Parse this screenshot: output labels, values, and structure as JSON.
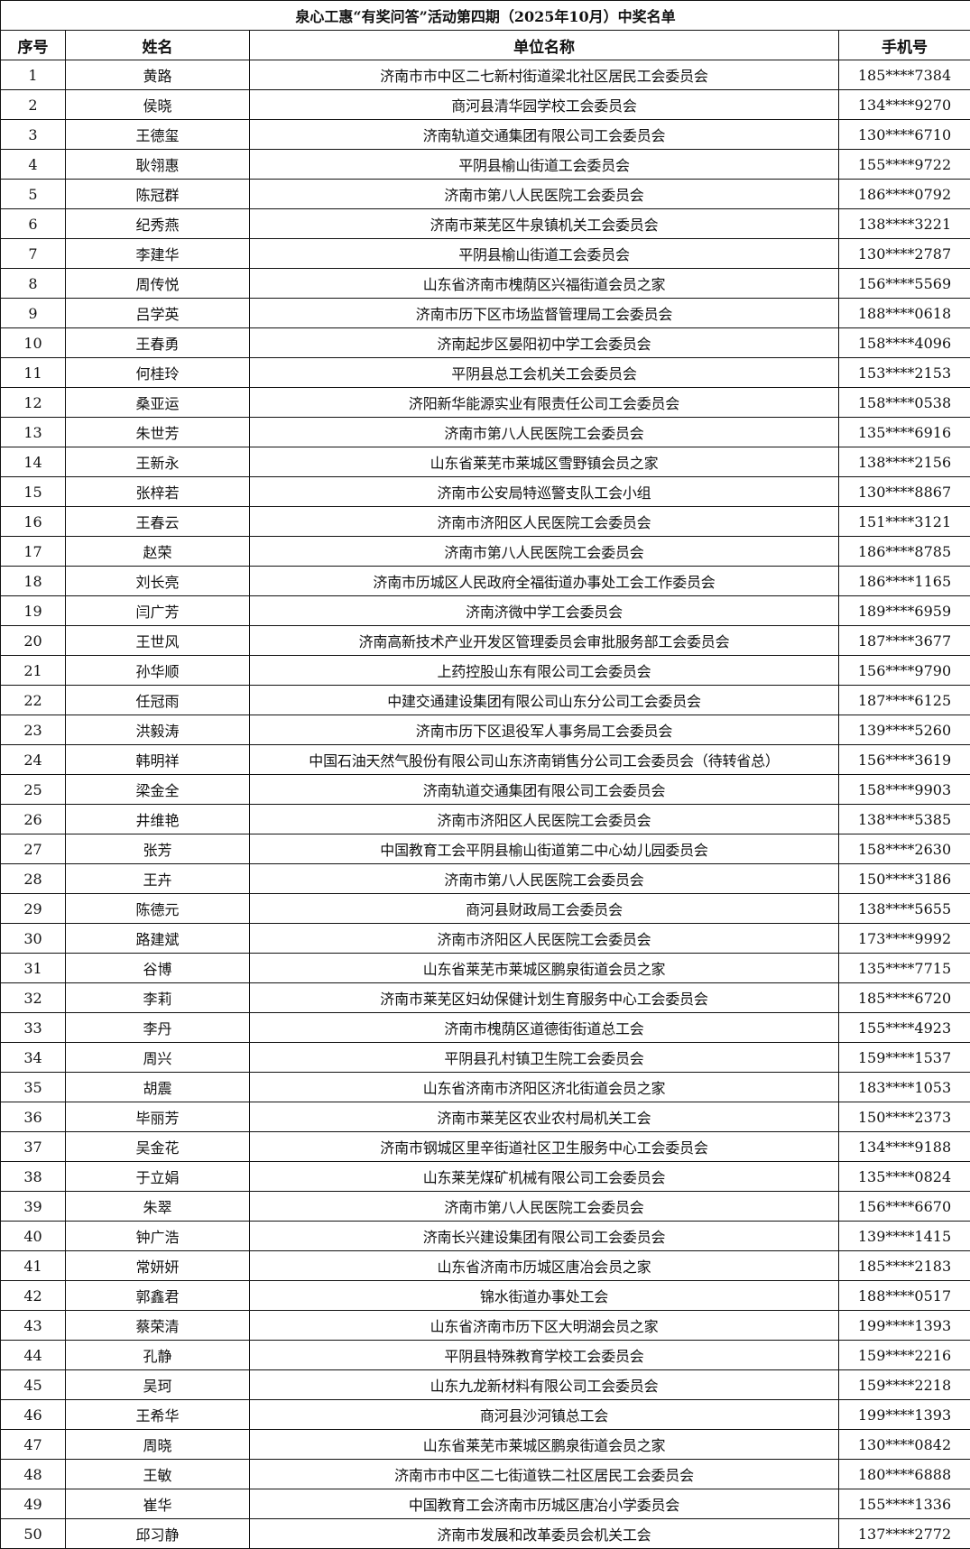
{
  "title": "泉心工惠“有奖问答”活动第四期（2025年10月）中奖名单",
  "columns": [
    "序号",
    "姓名",
    "单位名称",
    "手机号"
  ],
  "rows": [
    {
      "no": "1",
      "name": "黄路",
      "org": "济南市市中区二七新村街道梁北社区居民工会委员会",
      "phone": "185****7384"
    },
    {
      "no": "2",
      "name": "侯晓",
      "org": "商河县清华园学校工会委员会",
      "phone": "134****9270"
    },
    {
      "no": "3",
      "name": "王德玺",
      "org": "济南轨道交通集团有限公司工会委员会",
      "phone": "130****6710"
    },
    {
      "no": "4",
      "name": "耿翎惠",
      "org": "平阴县榆山街道工会委员会",
      "phone": "155****9722"
    },
    {
      "no": "5",
      "name": "陈冠群",
      "org": "济南市第八人民医院工会委员会",
      "phone": "186****0792"
    },
    {
      "no": "6",
      "name": "纪秀燕",
      "org": "济南市莱芜区牛泉镇机关工会委员会",
      "phone": "138****3221"
    },
    {
      "no": "7",
      "name": "李建华",
      "org": "平阴县榆山街道工会委员会",
      "phone": "130****2787"
    },
    {
      "no": "8",
      "name": "周传悦",
      "org": "山东省济南市槐荫区兴福街道会员之家",
      "phone": "156****5569"
    },
    {
      "no": "9",
      "name": "吕学英",
      "org": "济南市历下区市场监督管理局工会委员会",
      "phone": "188****0618"
    },
    {
      "no": "10",
      "name": "王春勇",
      "org": "济南起步区晏阳初中学工会委员会",
      "phone": "158****4096"
    },
    {
      "no": "11",
      "name": "何桂玲",
      "org": "平阴县总工会机关工会委员会",
      "phone": "153****2153"
    },
    {
      "no": "12",
      "name": "桑亚运",
      "org": "济阳新华能源实业有限责任公司工会委员会",
      "phone": "158****0538"
    },
    {
      "no": "13",
      "name": "朱世芳",
      "org": "济南市第八人民医院工会委员会",
      "phone": "135****6916"
    },
    {
      "no": "14",
      "name": "王新永",
      "org": "山东省莱芜市莱城区雪野镇会员之家",
      "phone": "138****2156"
    },
    {
      "no": "15",
      "name": "张梓若",
      "org": "济南市公安局特巡警支队工会小组",
      "phone": "130****8867"
    },
    {
      "no": "16",
      "name": "王春云",
      "org": "济南市济阳区人民医院工会委员会",
      "phone": "151****3121"
    },
    {
      "no": "17",
      "name": "赵荣",
      "org": "济南市第八人民医院工会委员会",
      "phone": "186****8785"
    },
    {
      "no": "18",
      "name": "刘长亮",
      "org": "济南市历城区人民政府全福街道办事处工会工作委员会",
      "phone": "186****1165"
    },
    {
      "no": "19",
      "name": "闫广芳",
      "org": "济南济微中学工会委员会",
      "phone": "189****6959"
    },
    {
      "no": "20",
      "name": "王世风",
      "org": "济南高新技术产业开发区管理委员会审批服务部工会委员会",
      "phone": "187****3677"
    },
    {
      "no": "21",
      "name": "孙华顺",
      "org": "上药控股山东有限公司工会委员会",
      "phone": "156****9790"
    },
    {
      "no": "22",
      "name": "任冠雨",
      "org": "中建交通建设集团有限公司山东分公司工会委员会",
      "phone": "187****6125"
    },
    {
      "no": "23",
      "name": "洪毅涛",
      "org": "济南市历下区退役军人事务局工会委员会",
      "phone": "139****5260"
    },
    {
      "no": "24",
      "name": "韩明祥",
      "org": "中国石油天然气股份有限公司山东济南销售分公司工会委员会（待转省总）",
      "phone": "156****3619"
    },
    {
      "no": "25",
      "name": "梁金全",
      "org": "济南轨道交通集团有限公司工会委员会",
      "phone": "158****9903"
    },
    {
      "no": "26",
      "name": "井维艳",
      "org": "济南市济阳区人民医院工会委员会",
      "phone": "138****5385"
    },
    {
      "no": "27",
      "name": "张芳",
      "org": "中国教育工会平阴县榆山街道第二中心幼儿园委员会",
      "phone": "158****2630"
    },
    {
      "no": "28",
      "name": "王卉",
      "org": "济南市第八人民医院工会委员会",
      "phone": "150****3186"
    },
    {
      "no": "29",
      "name": "陈德元",
      "org": "商河县财政局工会委员会",
      "phone": "138****5655"
    },
    {
      "no": "30",
      "name": "路建斌",
      "org": "济南市济阳区人民医院工会委员会",
      "phone": "173****9992"
    },
    {
      "no": "31",
      "name": "谷博",
      "org": "山东省莱芜市莱城区鹏泉街道会员之家",
      "phone": "135****7715"
    },
    {
      "no": "32",
      "name": "李莉",
      "org": "济南市莱芜区妇幼保健计划生育服务中心工会委员会",
      "phone": "185****6720"
    },
    {
      "no": "33",
      "name": "李丹",
      "org": "济南市槐荫区道德街街道总工会",
      "phone": "155****4923"
    },
    {
      "no": "34",
      "name": "周兴",
      "org": "平阴县孔村镇卫生院工会委员会",
      "phone": "159****1537"
    },
    {
      "no": "35",
      "name": "胡震",
      "org": "山东省济南市济阳区济北街道会员之家",
      "phone": "183****1053"
    },
    {
      "no": "36",
      "name": "毕丽芳",
      "org": "济南市莱芜区农业农村局机关工会",
      "phone": "150****2373"
    },
    {
      "no": "37",
      "name": "吴金花",
      "org": "济南市钢城区里辛街道社区卫生服务中心工会委员会",
      "phone": "134****9188"
    },
    {
      "no": "38",
      "name": "于立娟",
      "org": "山东莱芜煤矿机械有限公司工会委员会",
      "phone": "135****0824"
    },
    {
      "no": "39",
      "name": "朱翠",
      "org": "济南市第八人民医院工会委员会",
      "phone": "156****6670"
    },
    {
      "no": "40",
      "name": "钟广浩",
      "org": "济南长兴建设集团有限公司工会委员会",
      "phone": "139****1415"
    },
    {
      "no": "41",
      "name": "常妍妍",
      "org": "山东省济南市历城区唐冶会员之家",
      "phone": "185****2183"
    },
    {
      "no": "42",
      "name": "郭鑫君",
      "org": "锦水街道办事处工会",
      "phone": "188****0517"
    },
    {
      "no": "43",
      "name": "蔡荣清",
      "org": "山东省济南市历下区大明湖会员之家",
      "phone": "199****1393"
    },
    {
      "no": "44",
      "name": "孔静",
      "org": "平阴县特殊教育学校工会委员会",
      "phone": "159****2216"
    },
    {
      "no": "45",
      "name": "吴珂",
      "org": "山东九龙新材料有限公司工会委员会",
      "phone": "159****2218"
    },
    {
      "no": "46",
      "name": "王希华",
      "org": "商河县沙河镇总工会",
      "phone": "199****1393"
    },
    {
      "no": "47",
      "name": "周晓",
      "org": "山东省莱芜市莱城区鹏泉街道会员之家",
      "phone": "130****0842"
    },
    {
      "no": "48",
      "name": "王敏",
      "org": "济南市市中区二七街道铁二社区居民工会委员会",
      "phone": "180****6888"
    },
    {
      "no": "49",
      "name": "崔华",
      "org": "中国教育工会济南市历城区唐冶小学委员会",
      "phone": "155****1336"
    },
    {
      "no": "50",
      "name": "邱习静",
      "org": "济南市发展和改革委员会机关工会",
      "phone": "137****2772"
    }
  ]
}
